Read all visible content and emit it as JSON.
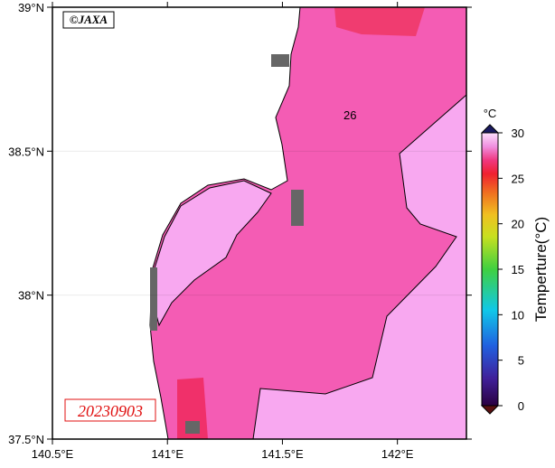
{
  "map": {
    "credit": "©JAXA",
    "date": "20230903",
    "contour_label": "26",
    "lon_range": [
      140.5,
      142.3
    ],
    "lat_range": [
      37.5,
      39
    ],
    "lon_ticks": [
      {
        "value": 140.5,
        "label": "140.5°E"
      },
      {
        "value": 141,
        "label": "141°E"
      },
      {
        "value": 141.5,
        "label": "141.5°E"
      },
      {
        "value": 142,
        "label": "142°E"
      }
    ],
    "lat_ticks": [
      {
        "value": 37.5,
        "label": "37.5°N"
      },
      {
        "value": 38,
        "label": "38°N"
      },
      {
        "value": 38.5,
        "label": "38.5°N"
      },
      {
        "value": 39,
        "label": "39°N"
      }
    ],
    "colorbar": {
      "unit": "°C",
      "title": "Temperture(°C)",
      "range": [
        0,
        30
      ],
      "ticks": [
        0,
        5,
        10,
        15,
        20,
        25,
        30
      ]
    }
  }
}
